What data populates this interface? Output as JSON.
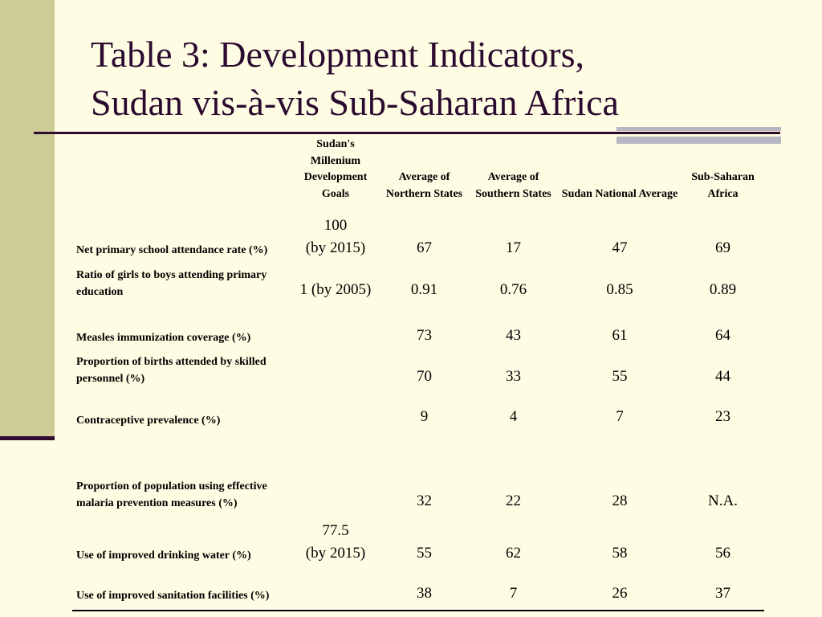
{
  "slide": {
    "title_line1": "Table 3: Development Indicators,",
    "title_line2": "Sudan vis-à-vis Sub-Saharan Africa"
  },
  "table": {
    "headers": {
      "indicator": "",
      "goals": "Sudan's Millenium Development Goals",
      "northern": "Average of Northern States",
      "southern": "Average of Southern States",
      "national": "Sudan National Average",
      "ssa": "Sub-Saharan Africa"
    },
    "rows": [
      {
        "label": "Net primary school attendance rate (%)",
        "goal_line1": "100",
        "goal_line2": "(by 2015)",
        "northern": "67",
        "southern": "17",
        "national": "47",
        "ssa": "69"
      },
      {
        "label": "Ratio of girls to boys attending primary education",
        "goal_line1": "1 (by 2005)",
        "northern": "0.91",
        "southern": "0.76",
        "national": "0.85",
        "ssa": "0.89"
      },
      {
        "label": "Measles immunization coverage (%)",
        "northern": "73",
        "southern": "43",
        "national": "61",
        "ssa": "64"
      },
      {
        "label": "Proportion of births attended by skilled personnel (%)",
        "northern": "70",
        "southern": "33",
        "national": "55",
        "ssa": "44"
      },
      {
        "label": "Contraceptive prevalence (%)",
        "northern": "9",
        "southern": "4",
        "national": "7",
        "ssa": "23"
      },
      {
        "label": "Proportion of population using effective malaria prevention measures (%)",
        "northern": "32",
        "southern": "22",
        "national": "28",
        "ssa": "N.A."
      },
      {
        "label": "Use of improved drinking water (%)",
        "goal_line1": "77.5",
        "goal_line2": "(by 2015)",
        "northern": "55",
        "southern": "62",
        "national": "58",
        "ssa": "56"
      },
      {
        "label": "Use of improved sanitation facilities (%)",
        "northern": "38",
        "southern": "7",
        "national": "26",
        "ssa": "37"
      }
    ]
  },
  "colors": {
    "background": "#fefde3",
    "side_bar": "#cfcb96",
    "title_text": "#2b0a2f",
    "rule": "#2e0b2e",
    "accent_rule": "#b7b6c3"
  }
}
